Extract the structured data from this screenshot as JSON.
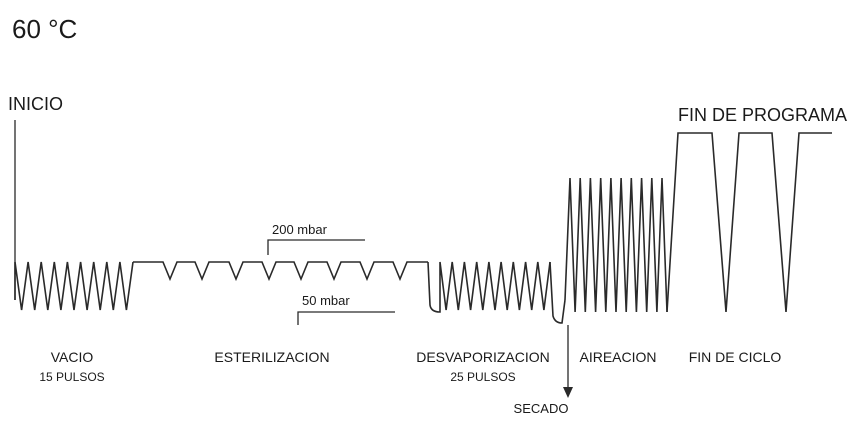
{
  "temperature": "60 °C",
  "start_label": "INICIO",
  "end_label": "FIN DE PROGRAMA",
  "pressure_high": "200 mbar",
  "pressure_low": "50 mbar",
  "phases": [
    {
      "name": "VACIO",
      "detail": "15 PULSOS"
    },
    {
      "name": "ESTERILIZACION",
      "detail": ""
    },
    {
      "name": "DESVAPORIZACION",
      "detail": "25 PULSOS"
    },
    {
      "name": "AIREACION",
      "detail": ""
    },
    {
      "name": "FIN DE CICLO",
      "detail": ""
    }
  ],
  "drying_label": "SECADO"
}
